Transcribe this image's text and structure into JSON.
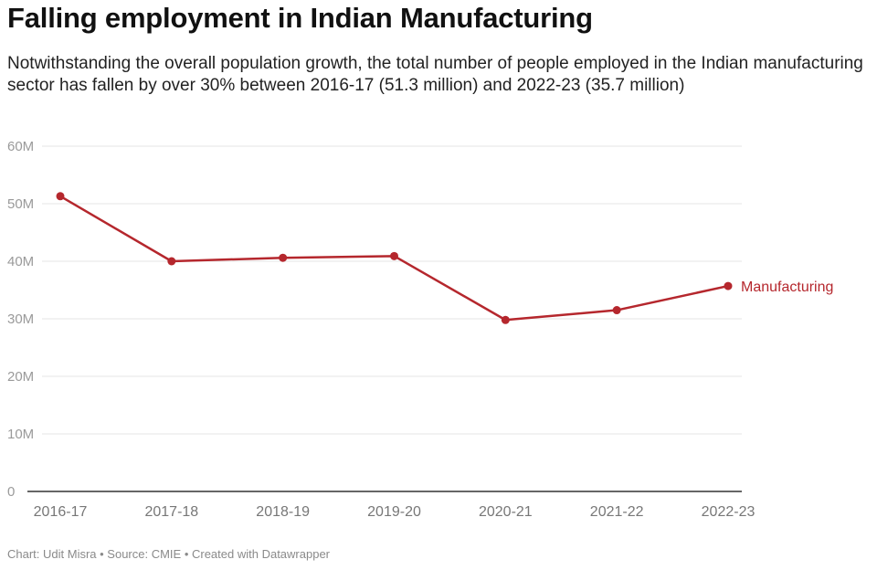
{
  "title": "Falling employment in Indian Manufacturing",
  "subtitle": "Notwithstanding the overall population growth, the total number of people employed in the Indian manufacturing sector has fallen by over 30% between 2016-17 (51.3 million) and 2022-23 (35.7 million)",
  "footer": "Chart: Udit Misra • Source: CMIE • Created with Datawrapper",
  "colors": {
    "series": "#b5272d",
    "grid": "#e6e6e6",
    "axis": "#333333",
    "tick_text": "#9a9a9a"
  },
  "chart_data": {
    "type": "line",
    "title": "Falling employment in Indian Manufacturing",
    "xlabel": "",
    "ylabel": "",
    "categories": [
      "2016-17",
      "2017-18",
      "2018-19",
      "2019-20",
      "2020-21",
      "2021-22",
      "2022-23"
    ],
    "series": [
      {
        "name": "Manufacturing",
        "values": [
          51.3,
          40.0,
          40.6,
          40.9,
          29.8,
          31.5,
          35.7
        ]
      }
    ],
    "ylim": [
      0,
      60
    ],
    "yticks": [
      0,
      10,
      20,
      30,
      40,
      50,
      60
    ],
    "ytick_labels": [
      "0",
      "10M",
      "20M",
      "30M",
      "40M",
      "50M",
      "60M"
    ],
    "grid": true,
    "legend": "direct label at end of line"
  }
}
